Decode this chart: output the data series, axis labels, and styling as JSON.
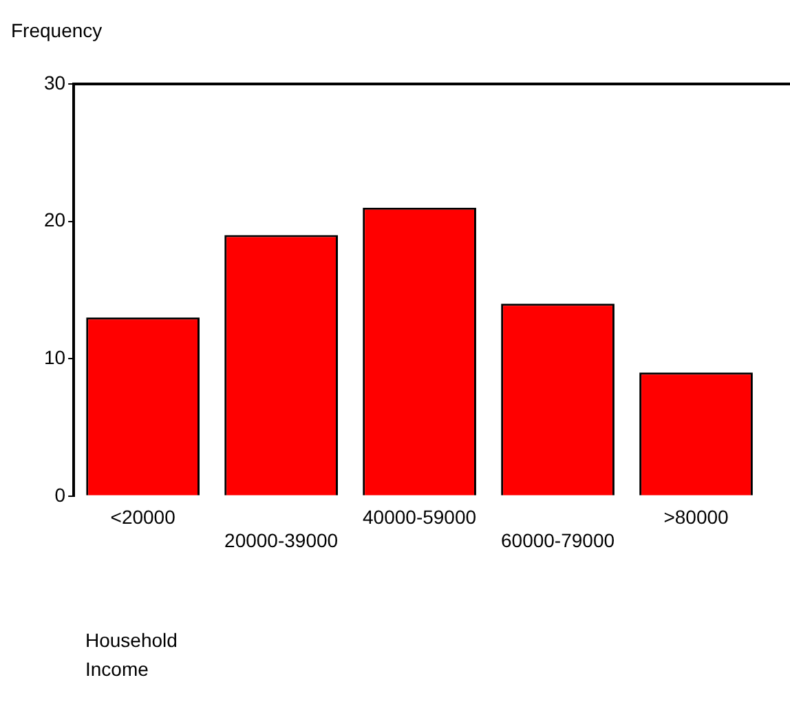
{
  "chart_data": {
    "type": "bar",
    "annotations": [
      "Household Income"
    ],
    "ylabel": "Frequency",
    "categories": [
      "<20000",
      "20000-39000",
      "40000-59000",
      "60000-79000",
      ">80000"
    ],
    "values": [
      13,
      19,
      21,
      14,
      9
    ],
    "color": "#ff0000",
    "ylim": [
      0,
      30
    ],
    "yticks": [
      0,
      10,
      20,
      30
    ],
    "grid": false,
    "legend": false
  }
}
